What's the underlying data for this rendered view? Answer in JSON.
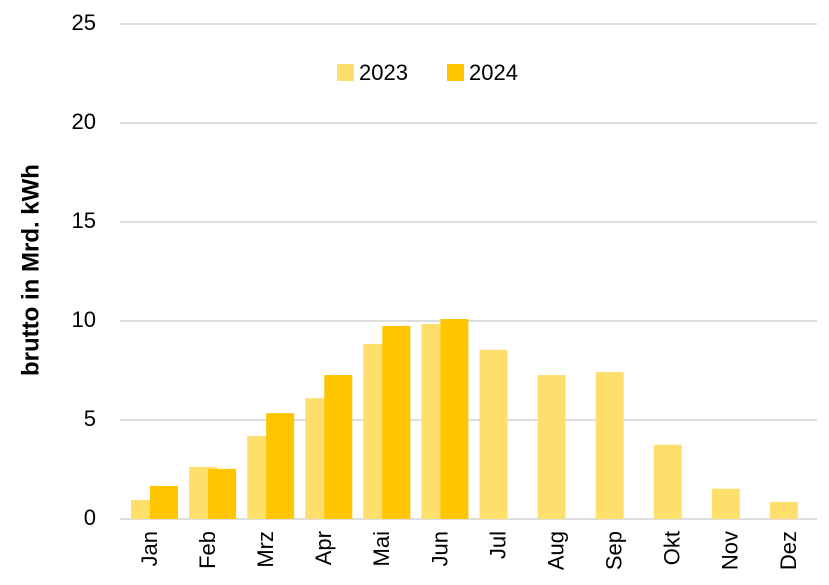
{
  "chart_data": {
    "type": "bar",
    "y_label": "brutto in  Mrd. kWh",
    "categories": [
      "Jan",
      "Feb",
      "Mrz",
      "Apr",
      "Mai",
      "Jun",
      "Jul",
      "Aug",
      "Sep",
      "Okt",
      "Nov",
      "Dez"
    ],
    "series": [
      {
        "name": "2023",
        "color": "#ffdf6b",
        "values": [
          0.96,
          2.63,
          4.19,
          6.1,
          8.84,
          9.85,
          8.55,
          7.27,
          7.42,
          3.75,
          1.53,
          0.86
        ]
      },
      {
        "name": "2024",
        "color": "#ffc600",
        "values": [
          1.67,
          2.53,
          5.35,
          7.27,
          9.75,
          10.1,
          null,
          null,
          null,
          null,
          null,
          null
        ]
      }
    ],
    "ylim": [
      0,
      25
    ],
    "yticks": [
      0,
      5,
      10,
      15,
      20,
      25
    ],
    "grid": true
  }
}
